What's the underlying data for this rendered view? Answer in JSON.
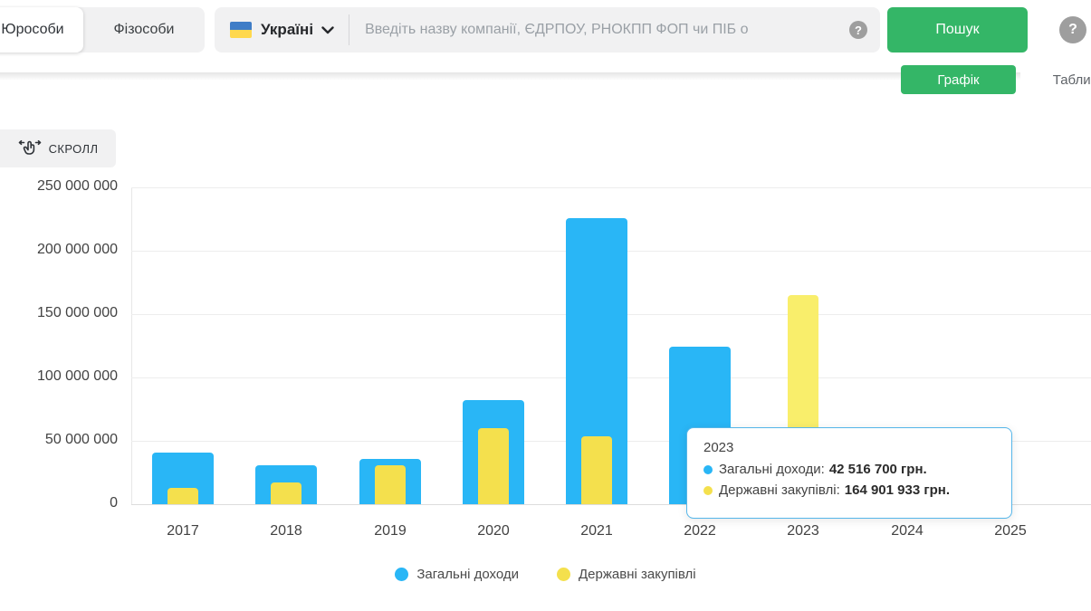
{
  "header": {
    "tabs": [
      {
        "label": "Юрособи",
        "active": true
      },
      {
        "label": "Фізособи",
        "active": false
      }
    ],
    "region_selector": {
      "label": "Україні",
      "flag": "ukraine-flag"
    },
    "search": {
      "placeholder": "Введіть назву компанії, ЄДРПОУ, РНОКПП ФОП чи ПІБ о",
      "help_icon": "?"
    },
    "search_button_label": "Пошук",
    "page_help_icon": "?"
  },
  "view_toggle": {
    "chart_label": "Графік",
    "table_label": "Таблиця",
    "active": "Графік"
  },
  "scroll_button_label": "СКРОЛЛ",
  "chart_data": {
    "type": "bar",
    "categories": [
      2017,
      2018,
      2019,
      2020,
      2021,
      2022,
      2023,
      2024,
      2025
    ],
    "series": [
      {
        "key": "total-income",
        "name": "Загальні доходи",
        "color": "#29b6f6",
        "highlight_color": "#53c5f9",
        "values": [
          41000000,
          31000000,
          36000000,
          82000000,
          225500000,
          124500000,
          42516700,
          null,
          null
        ]
      },
      {
        "key": "state-procurement",
        "name": "Державні закупівлі",
        "color": "#f4e04d",
        "highlight_color": "#f9ee6b",
        "values": [
          13000000,
          17000000,
          31000000,
          60000000,
          53500000,
          null,
          164901933,
          null,
          null
        ]
      }
    ],
    "ylim": [
      0,
      250000000
    ],
    "ytick_labels": [
      "0",
      "50 000 000",
      "100 000 000",
      "150 000 000",
      "200 000 000",
      "250 000 000"
    ],
    "grid": true,
    "legend_position": "bottom",
    "highlighted_category": 2023,
    "tooltip": {
      "title": "2023",
      "rows": [
        {
          "label": "Загальні доходи:",
          "value": "42 516 700 грн."
        },
        {
          "label": "Державні закупівлі:",
          "value": "164 901 933 грн."
        }
      ],
      "unit": "грн."
    }
  },
  "colors": {
    "accent_green": "#34b667",
    "bar_blue": "#29b6f6",
    "bar_yellow": "#f4e04d",
    "tooltip_border": "#55b6e9",
    "flag_blue": "#3f7dc7",
    "flag_yellow": "#ffd84d"
  }
}
